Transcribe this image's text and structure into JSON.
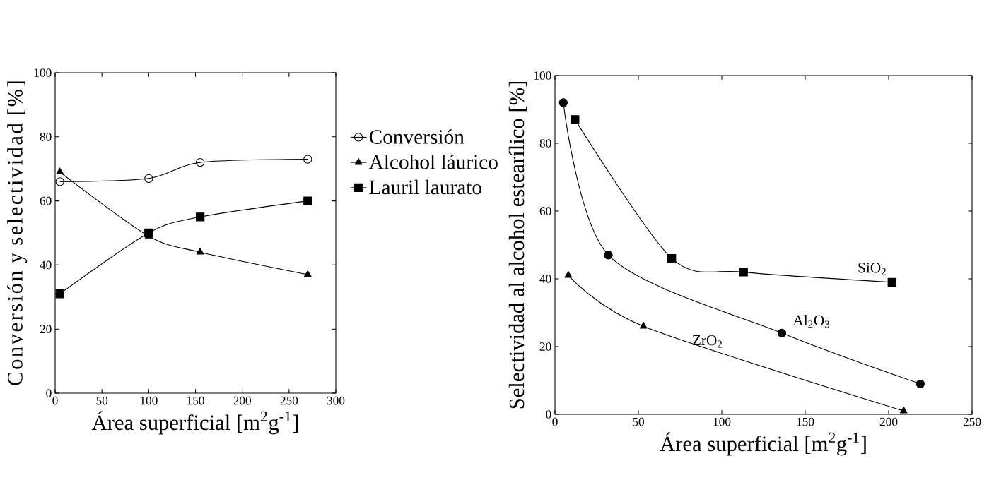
{
  "chart_data": [
    {
      "type": "line",
      "xlabel": "Área superficial [m$^{2}$g$^{-1}$]",
      "ylabel": "Conversión y selectividad [%]",
      "xlim": [
        0,
        300
      ],
      "ylim": [
        0,
        100
      ],
      "xticks": [
        0,
        50,
        100,
        150,
        200,
        250,
        300
      ],
      "yticks": [
        0,
        20,
        40,
        60,
        80,
        100
      ],
      "legend": "right",
      "series": [
        {
          "name": "Conversión",
          "color": "#000000",
          "marker": "circle",
          "x": [
            5,
            100,
            155,
            270
          ],
          "values": [
            66,
            67,
            72,
            73
          ]
        },
        {
          "name": "Alcohol láurico",
          "color": "#000000",
          "marker": "triangle",
          "x": [
            5,
            100,
            155,
            270
          ],
          "values": [
            69,
            49,
            44,
            37
          ]
        },
        {
          "name": "Lauril laurato",
          "color": "#000000",
          "marker": "square",
          "x": [
            5,
            100,
            155,
            270
          ],
          "values": [
            31,
            50,
            55,
            60
          ]
        }
      ]
    },
    {
      "type": "line",
      "xlabel": "Área superficial [m$^{2}$g$^{-1}$]",
      "ylabel": "Selectividad al alcohol estearílico [%]",
      "xlim": [
        0,
        250
      ],
      "ylim": [
        0,
        100
      ],
      "xticks": [
        0,
        50,
        100,
        150,
        200,
        250
      ],
      "yticks": [
        0,
        20,
        40,
        60,
        80,
        100
      ],
      "series": [
        {
          "name": "SiO$_{2}$",
          "color": "#000000",
          "marker": "square",
          "x": [
            12,
            70,
            113,
            202
          ],
          "values": [
            87,
            46,
            42,
            39
          ]
        },
        {
          "name": "Al$_{2}$O$_{3}$",
          "color": "#000000",
          "marker": "circle",
          "x": [
            5,
            32,
            136,
            219
          ],
          "values": [
            92,
            47,
            24,
            9
          ]
        },
        {
          "name": "ZrO$_{2}$",
          "color": "#000000",
          "marker": "triangle",
          "x": [
            8,
            53,
            209
          ],
          "values": [
            41,
            26,
            1
          ]
        }
      ]
    }
  ]
}
